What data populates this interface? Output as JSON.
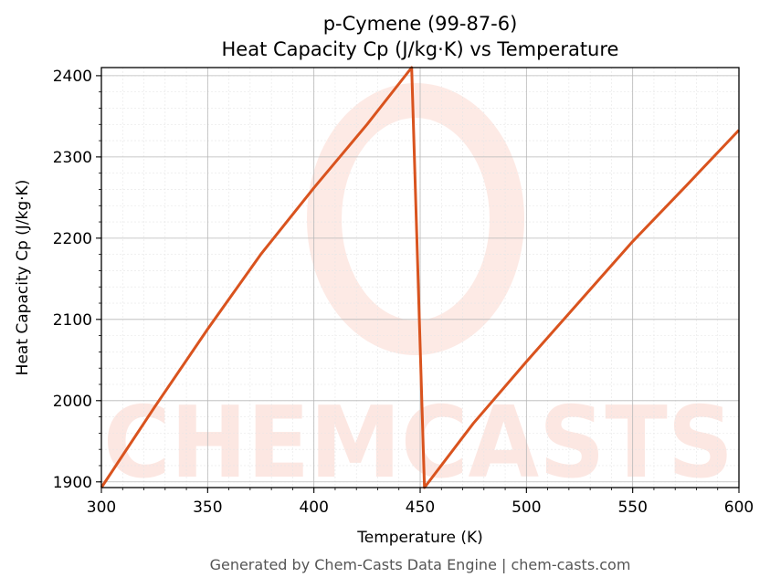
{
  "chart_data": {
    "type": "line",
    "title_line1": "p-Cymene (99-87-6)",
    "title_line2": "Heat Capacity Cp (J/kg·K) vs Temperature",
    "xlabel": "Temperature (K)",
    "ylabel": "Heat Capacity Cp (J/kg·K)",
    "xlim": [
      300,
      600
    ],
    "ylim": [
      1893,
      2410
    ],
    "xticks": [
      300,
      350,
      400,
      450,
      500,
      550,
      600
    ],
    "yticks": [
      1900,
      2000,
      2100,
      2200,
      2300,
      2400
    ],
    "grid": true,
    "line_color": "#d9531e",
    "series": [
      {
        "x": [
          300,
          325,
          350,
          375,
          400,
          425,
          446,
          452,
          475,
          500,
          525,
          550,
          575,
          600
        ],
        "y": [
          1893,
          1992,
          2088,
          2180,
          2262,
          2340,
          2410,
          1893,
          1972,
          2048,
          2122,
          2196,
          2264,
          2333
        ]
      }
    ]
  },
  "watermark": "CHEMCASTS",
  "footer": "Generated by Chem-Casts Data Engine | chem-casts.com"
}
